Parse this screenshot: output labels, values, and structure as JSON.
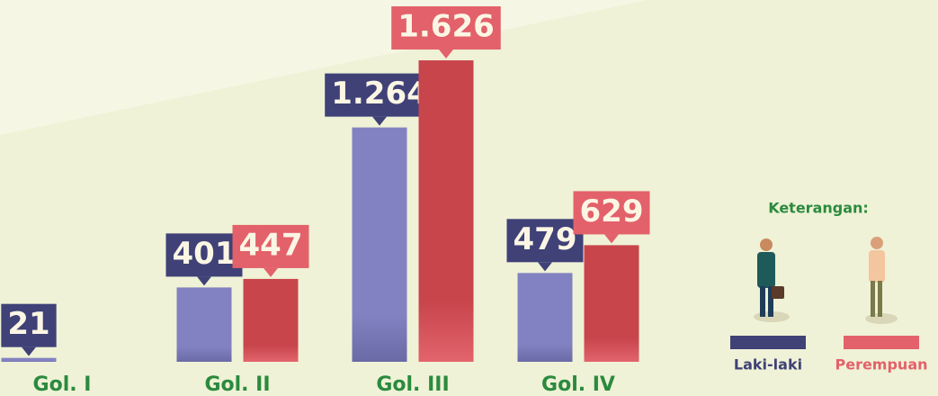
{
  "chart_data": {
    "type": "bar",
    "categories": [
      "Gol. I",
      "Gol. II",
      "Gol. III",
      "Gol. IV"
    ],
    "series": [
      {
        "name": "Laki-laki",
        "color": "#7f7fbf",
        "label_color": "#3f4177",
        "values": [
          21,
          401,
          1264,
          479
        ],
        "value_labels": [
          "21",
          "401",
          "1.264",
          "479"
        ]
      },
      {
        "name": "Perempuan",
        "color": "#c8454c",
        "label_color": "#e3616a",
        "values": [
          null,
          447,
          1626,
          629
        ],
        "value_labels": [
          null,
          "447",
          "1.626",
          "629"
        ]
      }
    ],
    "legend_title": "Keterangan:"
  }
}
